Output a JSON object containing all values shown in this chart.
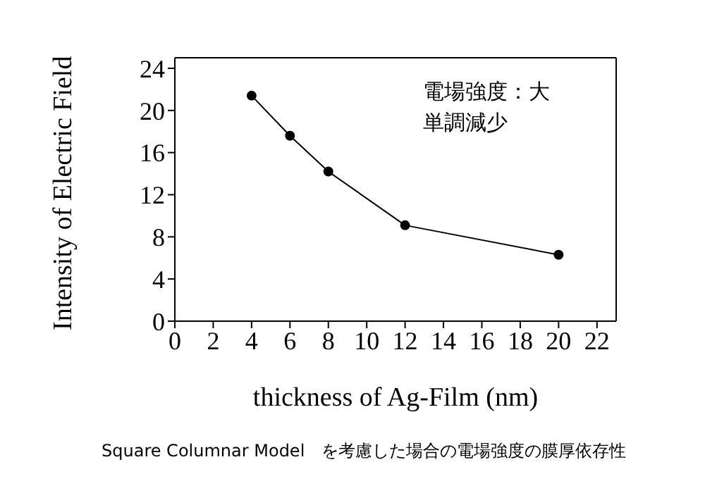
{
  "chart_data": {
    "type": "line",
    "xlabel": "thickness of Ag-Film (nm)",
    "ylabel": "Intensity of Electric Field",
    "x": [
      4,
      6,
      8,
      12,
      20
    ],
    "series": [
      {
        "color": "#000000",
        "values": [
          21.4,
          17.6,
          14.2,
          9.1,
          6.3
        ]
      }
    ],
    "xlim": [
      0,
      23
    ],
    "xticks": [
      0,
      2,
      4,
      6,
      8,
      10,
      12,
      14,
      16,
      18,
      20,
      22
    ],
    "ylim": [
      0,
      25
    ],
    "yticks": [
      0,
      4,
      8,
      12,
      16,
      20,
      24
    ],
    "grid": false,
    "legend": false,
    "marker": "circle",
    "line_style": "solid",
    "annotations": [
      "電場強度：大",
      "単調減少",
      "Square Columnar Model　を考慮した場合の電場強度の膜厚依存性"
    ]
  }
}
